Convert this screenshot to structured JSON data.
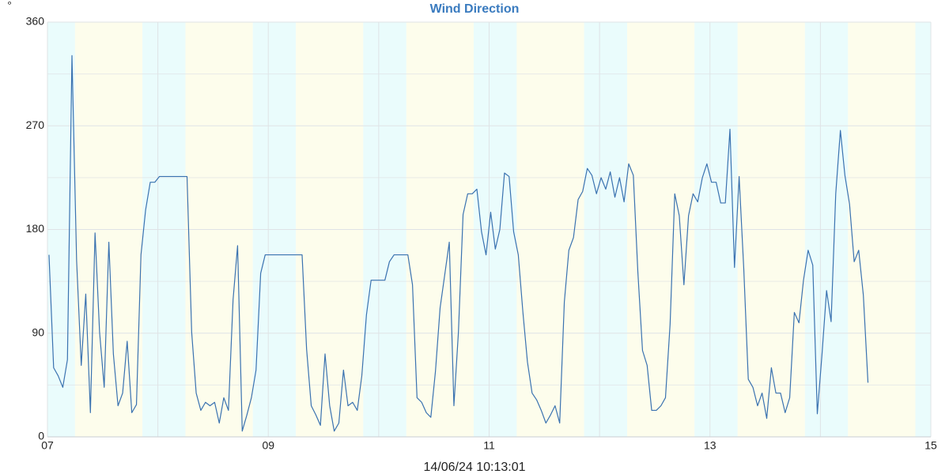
{
  "chart_data": {
    "type": "line",
    "title": "Wind Direction",
    "ylabel": "°",
    "footer": "14/06/24 10:13:01",
    "xlim": [
      7,
      15
    ],
    "xticks": [
      {
        "value": 7,
        "label": "07"
      },
      {
        "value": 9,
        "label": "09"
      },
      {
        "value": 11,
        "label": "11"
      },
      {
        "value": 13,
        "label": "13"
      },
      {
        "value": 15,
        "label": "15"
      }
    ],
    "xminor": [
      8,
      10,
      12,
      14
    ],
    "ylim": [
      0,
      360
    ],
    "yticks": [
      0,
      90,
      180,
      270,
      360
    ],
    "yminor": [
      45,
      135,
      225,
      315
    ],
    "grid": true,
    "bands": [
      {
        "x": [
          7,
          7.25
        ],
        "color": "#eafcfc"
      },
      {
        "x": [
          7.25,
          7.86
        ],
        "color": "#fdfdec"
      },
      {
        "x": [
          7.86,
          8.25
        ],
        "color": "#eafcfc"
      },
      {
        "x": [
          8.25,
          8.86
        ],
        "color": "#fdfdec"
      },
      {
        "x": [
          8.86,
          9.25
        ],
        "color": "#eafcfc"
      },
      {
        "x": [
          9.25,
          9.86
        ],
        "color": "#fdfdec"
      },
      {
        "x": [
          9.86,
          10.25
        ],
        "color": "#eafcfc"
      },
      {
        "x": [
          10.25,
          10.86
        ],
        "color": "#fdfdec"
      },
      {
        "x": [
          10.86,
          11.25
        ],
        "color": "#eafcfc"
      },
      {
        "x": [
          11.25,
          11.86
        ],
        "color": "#fdfdec"
      },
      {
        "x": [
          11.86,
          12.25
        ],
        "color": "#eafcfc"
      },
      {
        "x": [
          12.25,
          12.86
        ],
        "color": "#fdfdec"
      },
      {
        "x": [
          12.86,
          13.25
        ],
        "color": "#eafcfc"
      },
      {
        "x": [
          13.25,
          13.86
        ],
        "color": "#fdfdec"
      },
      {
        "x": [
          13.86,
          14.25
        ],
        "color": "#eafcfc"
      },
      {
        "x": [
          14.25,
          14.86
        ],
        "color": "#fdfdec"
      },
      {
        "x": [
          14.86,
          15
        ],
        "color": "#eafcfc"
      }
    ],
    "x": [
      7.014,
      7.056,
      7.097,
      7.139,
      7.181,
      7.222,
      7.264,
      7.306,
      7.347,
      7.389,
      7.431,
      7.472,
      7.514,
      7.556,
      7.597,
      7.639,
      7.681,
      7.722,
      7.764,
      7.806,
      7.847,
      7.889,
      7.931,
      7.972,
      8.014,
      8.056,
      8.097,
      8.139,
      8.181,
      8.222,
      8.264,
      8.306,
      8.347,
      8.389,
      8.431,
      8.472,
      8.514,
      8.556,
      8.597,
      8.639,
      8.681,
      8.722,
      8.764,
      8.806,
      8.847,
      8.889,
      8.931,
      8.972,
      9.014,
      9.056,
      9.097,
      9.139,
      9.181,
      9.222,
      9.264,
      9.306,
      9.347,
      9.389,
      9.431,
      9.472,
      9.514,
      9.556,
      9.597,
      9.639,
      9.681,
      9.722,
      9.764,
      9.806,
      9.847,
      9.889,
      9.931,
      9.972,
      10.014,
      10.056,
      10.097,
      10.139,
      10.181,
      10.222,
      10.264,
      10.306,
      10.347,
      10.389,
      10.431,
      10.472,
      10.514,
      10.556,
      10.597,
      10.639,
      10.681,
      10.722,
      10.764,
      10.806,
      10.847,
      10.889,
      10.931,
      10.972,
      11.014,
      11.056,
      11.097,
      11.139,
      11.181,
      11.222,
      11.264,
      11.306,
      11.347,
      11.389,
      11.431,
      11.472,
      11.514,
      11.556,
      11.597,
      11.639,
      11.681,
      11.722,
      11.764,
      11.806,
      11.847,
      11.889,
      11.931,
      11.972,
      12.014,
      12.056,
      12.097,
      12.139,
      12.181,
      12.222,
      12.264,
      12.306,
      12.347,
      12.389,
      12.431,
      12.472,
      12.514,
      12.556,
      12.597,
      12.639,
      12.681,
      12.722,
      12.764,
      12.806,
      12.847,
      12.889,
      12.931,
      12.972,
      13.014,
      13.056,
      13.097,
      13.139,
      13.181,
      13.222,
      13.264,
      13.306,
      13.347,
      13.389,
      13.431,
      13.472,
      13.514,
      13.556,
      13.597,
      13.639,
      13.681,
      13.722,
      13.764,
      13.806,
      13.847,
      13.889,
      13.931,
      13.972,
      14.014,
      14.056,
      14.097,
      14.139,
      14.181,
      14.222,
      14.264,
      14.306,
      14.347,
      14.389,
      14.431
    ],
    "series": [
      {
        "color": "#3a72b0",
        "values": [
          158,
          60,
          53,
          43,
          67,
          331,
          153,
          62,
          124,
          21,
          177,
          91,
          43,
          169,
          72,
          27,
          38,
          83,
          21,
          28,
          158,
          197,
          221,
          221,
          226,
          226,
          226,
          226,
          226,
          226,
          226,
          91,
          38,
          23,
          30,
          27,
          30,
          12,
          34,
          23,
          119,
          166,
          5,
          19,
          34,
          58,
          142,
          158,
          158,
          158,
          158,
          158,
          158,
          158,
          158,
          158,
          76,
          27,
          19,
          10,
          72,
          27,
          5,
          12,
          58,
          27,
          30,
          23,
          53,
          106,
          136,
          136,
          136,
          136,
          152,
          158,
          158,
          158,
          158,
          132,
          34,
          30,
          21,
          17,
          57,
          112,
          140,
          169,
          27,
          91,
          193,
          211,
          211,
          215,
          178,
          158,
          195,
          163,
          180,
          229,
          226,
          178,
          158,
          108,
          65,
          38,
          32,
          23,
          12,
          19,
          27,
          12,
          117,
          162,
          173,
          206,
          213,
          233,
          227,
          211,
          225,
          215,
          230,
          208,
          225,
          204,
          237,
          227,
          143,
          75,
          62,
          23,
          23,
          27,
          34,
          98,
          211,
          192,
          132,
          192,
          211,
          204,
          225,
          237,
          221,
          221,
          203,
          203,
          267,
          147,
          226,
          146,
          50,
          43,
          27,
          38,
          16,
          60,
          38,
          38,
          21,
          34,
          108,
          99,
          136,
          162,
          149,
          20,
          71,
          127,
          100,
          211,
          266,
          227,
          202,
          152,
          162,
          123,
          47
        ]
      }
    ]
  }
}
